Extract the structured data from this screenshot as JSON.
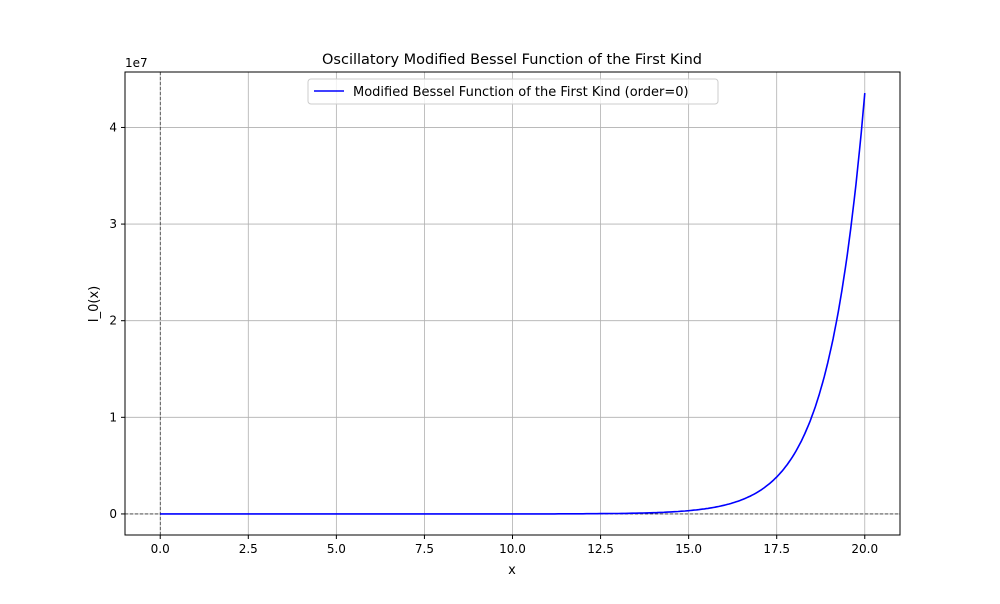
{
  "chart_data": {
    "type": "line",
    "title": "Oscillatory Modified Bessel Function of the First Kind",
    "xlabel": "x",
    "ylabel": "I_0(x)",
    "y_offset_label": "1e7",
    "xlim": [
      -1.0,
      21.0
    ],
    "ylim": [
      -2180000,
      45740000
    ],
    "xticks": [
      0.0,
      2.5,
      5.0,
      7.5,
      10.0,
      12.5,
      15.0,
      17.5,
      20.0
    ],
    "xtick_labels": [
      "0.0",
      "2.5",
      "5.0",
      "7.5",
      "10.0",
      "12.5",
      "15.0",
      "17.5",
      "20.0"
    ],
    "yticks": [
      0,
      10000000,
      20000000,
      30000000,
      40000000
    ],
    "ytick_labels": [
      "0",
      "1",
      "2",
      "3",
      "4"
    ],
    "grid": true,
    "reference_lines": {
      "x": 0,
      "y": 0,
      "style": "dashed",
      "color": "#000000"
    },
    "legend": {
      "placement": "upper center"
    },
    "series": [
      {
        "name": "Modified Bessel Function of the First Kind (order=0)",
        "color": "#0000ff",
        "x": [
          0,
          1,
          2,
          3,
          4,
          5,
          6,
          7,
          8,
          9,
          10,
          11,
          12,
          13,
          14,
          15,
          15.5,
          16,
          16.5,
          17,
          17.5,
          18,
          18.5,
          19,
          19.5,
          20
        ],
        "y": [
          1,
          1.266,
          2.28,
          4.881,
          11.3,
          27.24,
          67.23,
          168.6,
          427.6,
          1093.6,
          2815.7,
          7288.5,
          18949,
          49444,
          129418,
          339649,
          550690,
          893446,
          1450150,
          2354970,
          3825900,
          6218380,
          10111000,
          16446100,
          26760000,
          43558300
        ]
      }
    ]
  }
}
